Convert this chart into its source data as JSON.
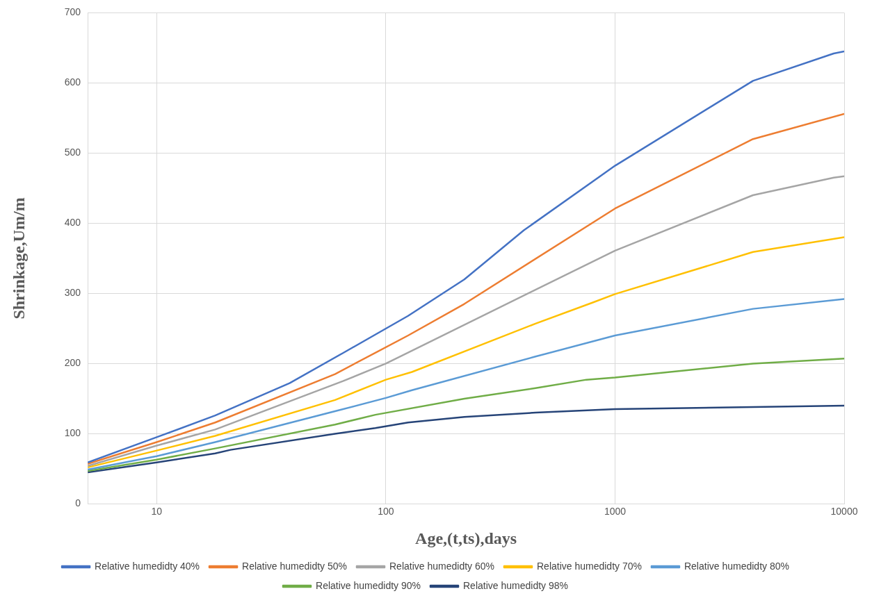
{
  "chart_data": {
    "type": "line",
    "xlabel": "Age,(t,ts),days",
    "ylabel": "Shrinkage,Um/m",
    "log": "x",
    "xlim": [
      5,
      10000
    ],
    "xticks": [
      10,
      100,
      1000,
      10000
    ],
    "ylim": [
      0,
      700
    ],
    "yticks": [
      0,
      100,
      200,
      300,
      400,
      500,
      600,
      700
    ],
    "grid": true,
    "legend": "bottom",
    "marker": "none",
    "line_style": "solid",
    "series": [
      {
        "name": "Relative humedidty 40%",
        "color": "#4472c4",
        "x": [
          5,
          10,
          18,
          38,
          65,
          125,
          220,
          400,
          1000,
          4000,
          9000,
          10000
        ],
        "values": [
          59,
          95,
          126,
          172,
          215,
          268,
          320,
          390,
          482,
          603,
          642,
          645
        ]
      },
      {
        "name": "Relative humedidty 50%",
        "color": "#ed7d31",
        "x": [
          5,
          10,
          18,
          60,
          125,
          220,
          1000,
          4000,
          10000
        ],
        "values": [
          57,
          88,
          116,
          185,
          240,
          285,
          421,
          520,
          556
        ]
      },
      {
        "name": "Relative humedidty 60%",
        "color": "#a5a5a5",
        "x": [
          5,
          10,
          18,
          65,
          100,
          1000,
          4000,
          9000,
          10000
        ],
        "values": [
          54,
          83,
          106,
          175,
          200,
          361,
          440,
          465,
          467
        ]
      },
      {
        "name": "Relative humedidty 70%",
        "color": "#ffc000",
        "x": [
          5,
          10,
          18,
          60,
          100,
          130,
          450,
          800,
          1000,
          4000,
          10000
        ],
        "values": [
          52,
          76,
          97,
          148,
          177,
          188,
          257,
          287,
          299,
          359,
          380
        ]
      },
      {
        "name": "Relative humedidty 80%",
        "color": "#5b9bd5",
        "x": [
          5,
          10,
          18,
          60,
          100,
          130,
          450,
          1000,
          4000,
          10000
        ],
        "values": [
          49,
          68,
          88,
          132,
          151,
          162,
          210,
          240,
          278,
          292
        ]
      },
      {
        "name": "Relative humedidty 90%",
        "color": "#70ad47",
        "x": [
          5,
          10,
          18,
          60,
          90,
          220,
          450,
          750,
          1000,
          4000,
          10000
        ],
        "values": [
          47,
          63,
          79,
          113,
          127,
          150,
          165,
          177,
          180,
          200,
          207
        ]
      },
      {
        "name": "Relative humedidty 98%",
        "color": "#264478",
        "x": [
          5,
          10,
          18,
          21,
          60,
          90,
          125,
          220,
          450,
          1000,
          4000,
          10000
        ],
        "values": [
          45,
          59,
          72,
          77,
          100,
          108,
          116,
          124,
          130,
          135,
          138,
          140
        ]
      }
    ]
  }
}
